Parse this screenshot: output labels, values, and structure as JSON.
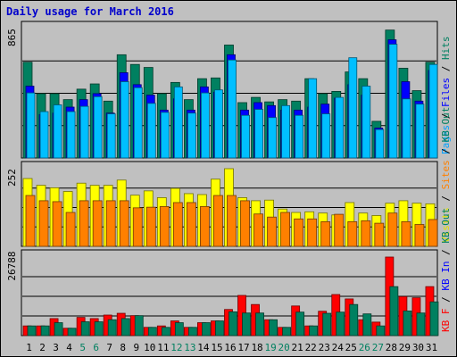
{
  "chart_data": [
    {
      "type": "bar",
      "title": "Daily usage for March 2016",
      "ylabel_max": "865",
      "side_labels": [
        {
          "text": "Pages",
          "color": "#00a0ff"
        },
        {
          "text": "Files",
          "color": "#0000ff"
        },
        {
          "text": "Hits",
          "color": "#008060"
        }
      ],
      "ymax": 865,
      "series": [
        {
          "name": "Hits",
          "color": "#008060",
          "values": [
            640,
            430,
            430,
            390,
            460,
            495,
            380,
            690,
            625,
            605,
            430,
            505,
            390,
            530,
            535,
            755,
            370,
            405,
            375,
            390,
            380,
            530,
            430,
            445,
            575,
            530,
            245,
            855,
            600,
            450,
            640
          ]
        },
        {
          "name": "Files",
          "color": "#0000ff",
          "values": [
            480,
            290,
            300,
            340,
            390,
            430,
            300,
            570,
            490,
            420,
            320,
            395,
            320,
            475,
            440,
            690,
            320,
            370,
            350,
            320,
            320,
            340,
            360,
            400,
            490,
            420,
            200,
            790,
            510,
            380,
            585
          ]
        },
        {
          "name": "Pages",
          "color": "#00bfff",
          "values": [
            435,
            310,
            355,
            310,
            345,
            410,
            295,
            510,
            470,
            365,
            305,
            475,
            300,
            435,
            455,
            655,
            285,
            325,
            270,
            350,
            285,
            530,
            295,
            405,
            670,
            480,
            190,
            760,
            395,
            360,
            625
          ]
        }
      ]
    },
    {
      "type": "bar",
      "ylabel_max": "252",
      "side_labels": [
        {
          "text": "Visits",
          "color": "#e0e000"
        },
        {
          "text": "Sites",
          "color": "#ff8000"
        },
        {
          "text": "KB Out",
          "color": "#008060"
        }
      ],
      "ymax": 252,
      "series": [
        {
          "name": "Visits",
          "color": "#ffff00",
          "values": [
            220,
            198,
            190,
            178,
            205,
            198,
            198,
            215,
            166,
            180,
            158,
            188,
            171,
            168,
            218,
            252,
            158,
            148,
            150,
            121,
            110,
            112,
            108,
            102,
            142,
            108,
            100,
            140,
            148,
            140,
            138
          ]
        },
        {
          "name": "Sites",
          "color": "#ff8000",
          "values": [
            165,
            148,
            145,
            110,
            148,
            148,
            148,
            148,
            125,
            127,
            129,
            142,
            142,
            129,
            165,
            165,
            148,
            105,
            95,
            110,
            89,
            89,
            80,
            104,
            80,
            83,
            75,
            108,
            80,
            71,
            87
          ]
        }
      ]
    },
    {
      "type": "bar",
      "ylabel_max": "26788",
      "side_labels": [
        {
          "text": "KB F",
          "color": "#ff0000"
        },
        {
          "text": "KB In",
          "color": "#0000ff"
        },
        {
          "text": "KB Out",
          "color": "#008060"
        }
      ],
      "ymax": 26788,
      "x": [
        "1",
        "2",
        "3",
        "4",
        "5",
        "6",
        "7",
        "8",
        "9",
        "10",
        "11",
        "12",
        "13",
        "14",
        "15",
        "16",
        "17",
        "18",
        "19",
        "20",
        "21",
        "22",
        "23",
        "24",
        "25",
        "26",
        "27",
        "28",
        "29",
        "30",
        "31"
      ],
      "weekend_days": [
        5,
        6,
        12,
        13,
        19,
        20,
        26,
        27
      ],
      "weekday_label_color": "#000000",
      "weekend_label_color": "#008060",
      "series": [
        {
          "name": "KB F",
          "color": "#ff0000",
          "values": [
            3300,
            3300,
            5800,
            2500,
            6200,
            5800,
            7000,
            7600,
            6800,
            2800,
            3300,
            5000,
            2800,
            4400,
            5000,
            8900,
            13700,
            10600,
            5400,
            2800,
            10100,
            3300,
            8300,
            14000,
            12500,
            5400,
            4600,
            26788,
            13300,
            12900,
            16700
          ]
        },
        {
          "name": "KB Out",
          "color": "#008060",
          "values": [
            3300,
            3300,
            4400,
            2500,
            4700,
            4700,
            5400,
            5800,
            6800,
            2800,
            2800,
            4400,
            2800,
            4400,
            5000,
            8100,
            7700,
            7700,
            5400,
            2800,
            8000,
            3300,
            7600,
            8000,
            10600,
            7400,
            3300,
            16700,
            8400,
            7700,
            11500
          ]
        }
      ]
    }
  ]
}
